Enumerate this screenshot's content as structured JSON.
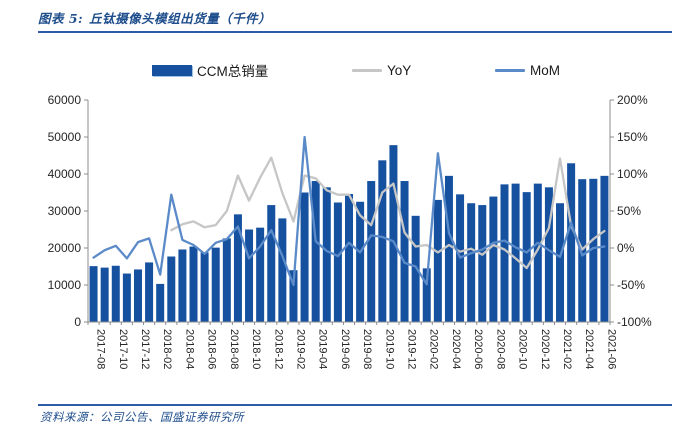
{
  "figure": {
    "label": "图表 5:",
    "title": "丘钛摄像头模组出货量（千件）"
  },
  "footer": {
    "text": "资料来源：公司公告、国盛证券研究所"
  },
  "colors": {
    "bar_blue": "#15519f",
    "mom_blue": "#5b8ac9",
    "yoy_gray": "#c6c6c6",
    "accent_text_blue": "#1f4e8c",
    "divider_blue": "#2e5ba6",
    "axis_gray": "#8c8c8c",
    "tick_text": "#262626"
  },
  "chart_data": {
    "type": "bar",
    "title": "丘钛摄像头模组出货量（千件）",
    "xlabel": "",
    "ylabel_left": "",
    "ylabel_right": "",
    "grid": false,
    "legend_position": "top",
    "categories": [
      "2017-08",
      "2017-09",
      "2017-10",
      "2017-11",
      "2017-12",
      "2018-01",
      "2018-02",
      "2018-03",
      "2018-04",
      "2018-05",
      "2018-06",
      "2018-07",
      "2018-08",
      "2018-09",
      "2018-10",
      "2018-11",
      "2018-12",
      "2019-01",
      "2019-02",
      "2019-03",
      "2019-04",
      "2019-05",
      "2019-06",
      "2019-07",
      "2019-08",
      "2019-09",
      "2019-10",
      "2019-11",
      "2019-12",
      "2020-01",
      "2020-02",
      "2020-03",
      "2020-04",
      "2020-05",
      "2020-06",
      "2020-07",
      "2020-08",
      "2020-09",
      "2020-10",
      "2020-11",
      "2020-12",
      "2021-01",
      "2021-02",
      "2021-03",
      "2021-04",
      "2021-05",
      "2021-06"
    ],
    "x_tick_labels": [
      "2017-08",
      "2017-10",
      "2017-12",
      "2018-02",
      "2018-04",
      "2018-06",
      "2018-08",
      "2018-10",
      "2018-12",
      "2019-02",
      "2019-04",
      "2019-06",
      "2019-08",
      "2019-10",
      "2019-12",
      "2020-02",
      "2020-04",
      "2020-06",
      "2020-08",
      "2020-10",
      "2020-12",
      "2021-02",
      "2021-04",
      "2021-06"
    ],
    "series": [
      {
        "name": "CCM总销量",
        "kind": "bar",
        "axis": "left",
        "color": "#15519f",
        "values": [
          15100,
          14700,
          15200,
          13100,
          14200,
          16100,
          10300,
          17700,
          19600,
          20400,
          18800,
          20100,
          22600,
          29100,
          25000,
          25500,
          31600,
          28000,
          14000,
          35000,
          38100,
          36400,
          32300,
          34600,
          32500,
          38100,
          43700,
          47800,
          38100,
          28700,
          14500,
          33000,
          39500,
          34500,
          32100,
          31600,
          33900,
          37200,
          37400,
          35100,
          37400,
          36400,
          32100,
          42900,
          38600,
          38700,
          39500
        ]
      },
      {
        "name": "YoY",
        "kind": "line",
        "axis": "right",
        "color": "#c6c6c6",
        "values": [
          null,
          null,
          null,
          null,
          null,
          null,
          null,
          24,
          32,
          36,
          28,
          31,
          50,
          98,
          64,
          95,
          122,
          74,
          36,
          98,
          94,
          78,
          72,
          72,
          44,
          31,
          75,
          87,
          21,
          2,
          4,
          -6,
          4,
          -5,
          -1,
          -9,
          4,
          -2,
          -14,
          -27,
          -2,
          27,
          121,
          30,
          -2,
          12,
          23
        ]
      },
      {
        "name": "MoM",
        "kind": "line",
        "axis": "right",
        "color": "#5b8ac9",
        "values": [
          -13,
          -3,
          3,
          -14,
          8,
          13,
          -36,
          72,
          11,
          4,
          -8,
          7,
          12,
          29,
          -14,
          2,
          24,
          -11,
          -50,
          150,
          9,
          -4,
          -11,
          7,
          -6,
          17,
          15,
          9,
          -20,
          -25,
          -49,
          128,
          20,
          -13,
          -7,
          -2,
          7,
          10,
          1,
          -6,
          7,
          -3,
          -12,
          34,
          -10,
          0,
          2
        ]
      }
    ],
    "left_axis": {
      "min": 0,
      "max": 60000,
      "step": 10000,
      "tick_labels": [
        "0",
        "10000",
        "20000",
        "30000",
        "40000",
        "50000",
        "60000"
      ]
    },
    "right_axis": {
      "min": -100,
      "max": 200,
      "step": 50,
      "tick_labels": [
        "-100%",
        "-50%",
        "0%",
        "50%",
        "100%",
        "150%",
        "200%"
      ]
    }
  }
}
